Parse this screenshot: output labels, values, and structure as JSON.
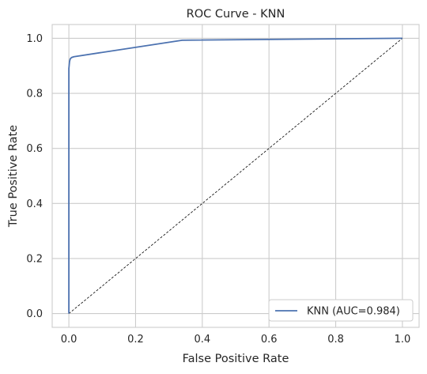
{
  "chart_data": {
    "type": "line",
    "title": "ROC Curve - KNN",
    "xlabel": "False Positive Rate",
    "ylabel": "True Positive Rate",
    "xlim": [
      -0.05,
      1.05
    ],
    "ylim": [
      -0.05,
      1.05
    ],
    "xticks": [
      0.0,
      0.2,
      0.4,
      0.6,
      0.8,
      1.0
    ],
    "yticks": [
      0.0,
      0.2,
      0.4,
      0.6,
      0.8,
      1.0
    ],
    "xtick_labels": [
      "0.0",
      "0.2",
      "0.4",
      "0.6",
      "0.8",
      "1.0"
    ],
    "ytick_labels": [
      "0.0",
      "0.2",
      "0.4",
      "0.6",
      "0.8",
      "1.0"
    ],
    "grid": true,
    "legend_position": "lower-right",
    "series": [
      {
        "name": "KNN (AUC=0.984)",
        "color": "#4c72b0",
        "style": "solid",
        "x": [
          0.0,
          0.0,
          0.002,
          0.004,
          0.008,
          0.015,
          0.34,
          1.0
        ],
        "y": [
          0.0,
          0.89,
          0.915,
          0.925,
          0.93,
          0.933,
          0.993,
          1.0
        ]
      },
      {
        "color": "#000000",
        "style": "dashed",
        "x": [
          0.0,
          1.0
        ],
        "y": [
          0.0,
          1.0
        ]
      }
    ]
  }
}
